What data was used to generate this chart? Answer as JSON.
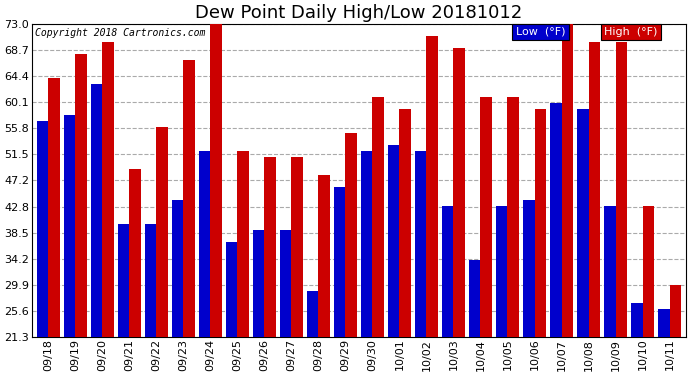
{
  "title": "Dew Point Daily High/Low 20181012",
  "copyright": "Copyright 2018 Cartronics.com",
  "dates": [
    "09/18",
    "09/19",
    "09/20",
    "09/21",
    "09/22",
    "09/23",
    "09/24",
    "09/25",
    "09/26",
    "09/27",
    "09/28",
    "09/29",
    "09/30",
    "10/01",
    "10/02",
    "10/03",
    "10/04",
    "10/05",
    "10/06",
    "10/07",
    "10/08",
    "10/09",
    "10/10",
    "10/11"
  ],
  "low": [
    57,
    58,
    63,
    40,
    40,
    44,
    52,
    37,
    39,
    39,
    29,
    46,
    52,
    53,
    52,
    43,
    34,
    43,
    44,
    60,
    59,
    43,
    27,
    26
  ],
  "high": [
    64,
    68,
    70,
    49,
    56,
    67,
    73,
    52,
    51,
    51,
    48,
    55,
    61,
    59,
    71,
    69,
    61,
    61,
    59,
    73,
    70,
    70,
    43,
    30
  ],
  "ymin": 21.3,
  "ymax": 73.0,
  "yticks": [
    21.3,
    25.6,
    29.9,
    34.2,
    38.5,
    42.8,
    47.2,
    51.5,
    55.8,
    60.1,
    64.4,
    68.7,
    73.0
  ],
  "low_color": "#0000cc",
  "high_color": "#cc0000",
  "bg_color": "#ffffff",
  "grid_color": "#aaaaaa",
  "title_fontsize": 13,
  "tick_fontsize": 8,
  "copyright_fontsize": 7,
  "bar_width": 0.42
}
